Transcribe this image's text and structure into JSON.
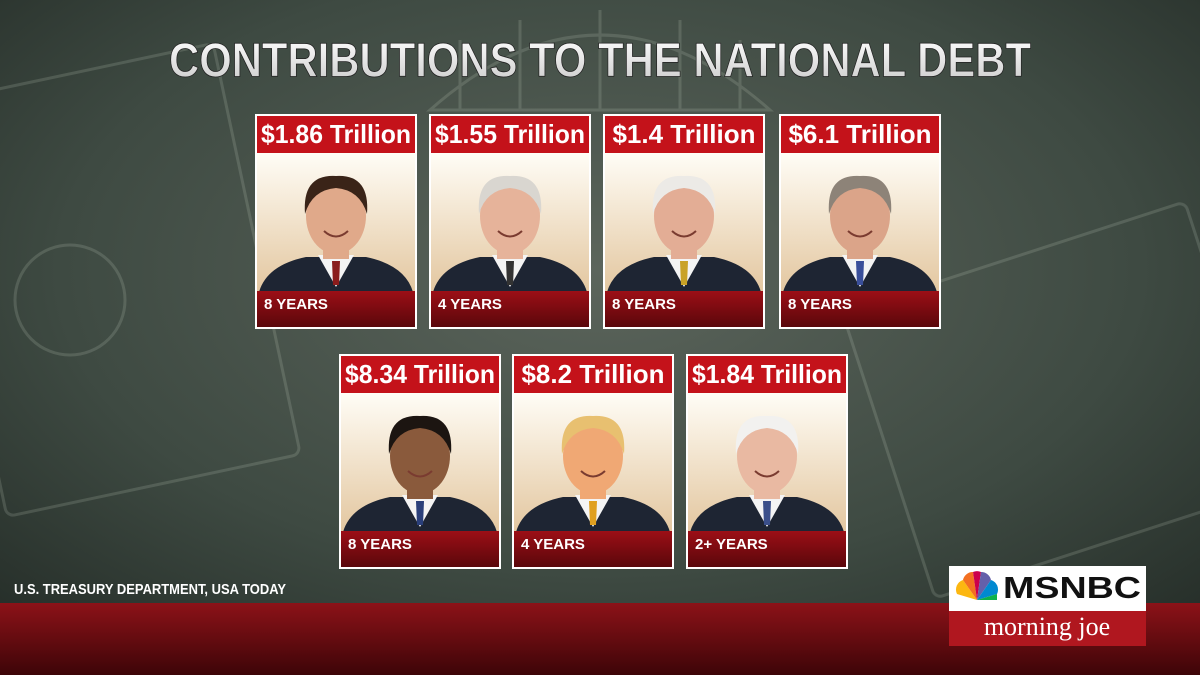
{
  "title": "CONTRIBUTIONS TO THE NATIONAL DEBT",
  "cards": [
    {
      "amount": "$1.86 Trillion",
      "term": "8 YEARS"
    },
    {
      "amount": "$1.55 Trillion",
      "term": "4 YEARS"
    },
    {
      "amount": "$1.4 Trillion",
      "term": "8 YEARS"
    },
    {
      "amount": "$6.1 Trillion",
      "term": "8 YEARS"
    },
    {
      "amount": "$8.34 Trillion",
      "term": "8 YEARS"
    },
    {
      "amount": "$8.2 Trillion",
      "term": "4 YEARS"
    },
    {
      "amount": "$1.84 Trillion",
      "term": "2+ YEARS"
    }
  ],
  "source": "U.S. TREASURY DEPARTMENT, USA TODAY",
  "logo": {
    "network": "MSNBC",
    "show": "morning joe"
  }
}
